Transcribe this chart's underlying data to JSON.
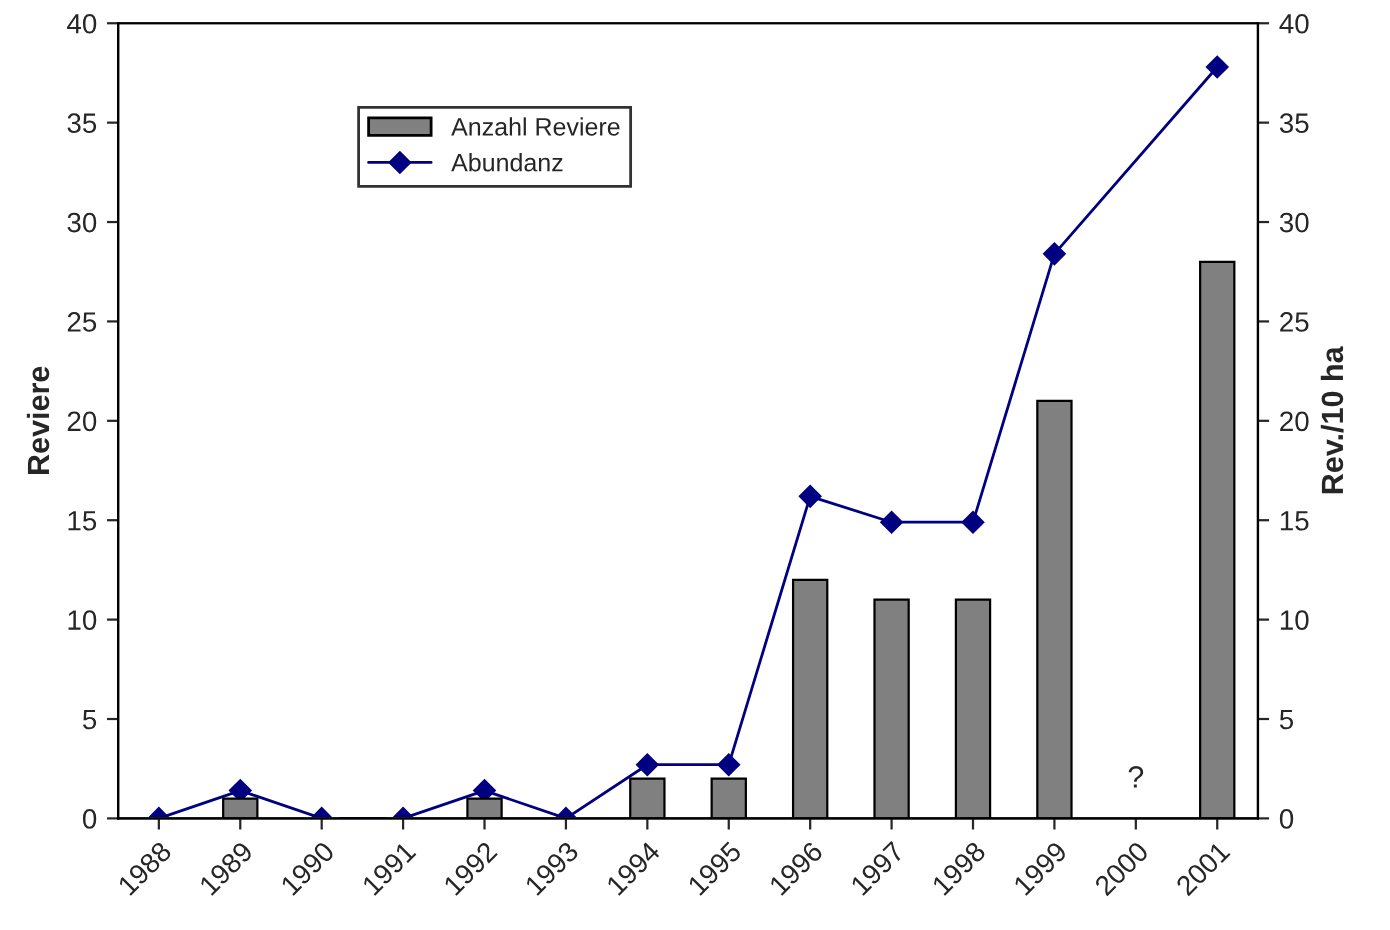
{
  "chart_data": {
    "type": "bar",
    "categories": [
      "1988",
      "1989",
      "1990",
      "1991",
      "1992",
      "1993",
      "1994",
      "1995",
      "1996",
      "1997",
      "1998",
      "1999",
      "2000",
      "2001"
    ],
    "series": [
      {
        "name": "Anzahl Reviere",
        "color": "#808080",
        "values": [
          0,
          1,
          0,
          0,
          1,
          0,
          2,
          2,
          12,
          11,
          11,
          21,
          null,
          28
        ]
      },
      {
        "name": "Abundanz",
        "type": "line",
        "axis": "y2",
        "color": "#000080",
        "marker": "diamond",
        "values": [
          0,
          1.4,
          0,
          0,
          1.4,
          0,
          2.7,
          2.7,
          16.2,
          14.9,
          14.9,
          28.4,
          null,
          37.8
        ]
      }
    ],
    "ylabel": "Reviere",
    "y2label": "Rev./10 ha",
    "ylim": [
      0,
      40
    ],
    "yticks": [
      0,
      5,
      10,
      15,
      20,
      25,
      30,
      35,
      40
    ],
    "y2lim": [
      0,
      40
    ],
    "y2ticks": [
      0,
      5,
      10,
      15,
      20,
      25,
      30,
      35,
      40
    ],
    "annotations": [
      "?"
    ],
    "grid": false,
    "legend": "top left"
  }
}
